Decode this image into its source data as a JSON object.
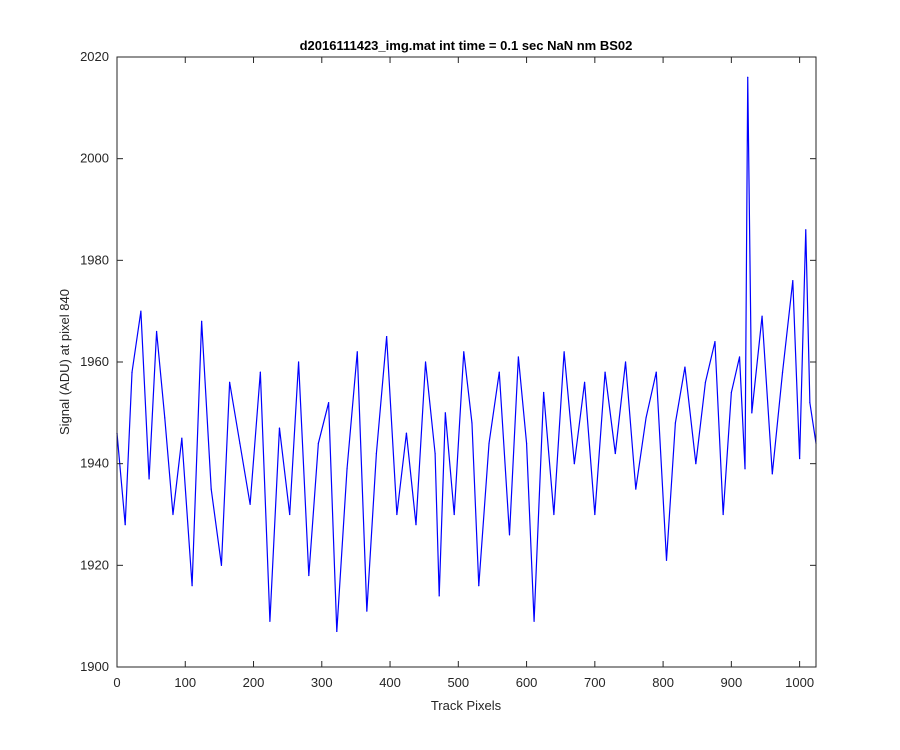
{
  "chart_data": {
    "type": "line",
    "title": "d2016111423_img.mat int time = 0.1 sec  NaN nm BS02",
    "xlabel": "Track Pixels",
    "ylabel": "Signal (ADU) at pixel 840",
    "xlim": [
      0,
      1024
    ],
    "ylim": [
      1900,
      2020
    ],
    "xticks": [
      0,
      100,
      200,
      300,
      400,
      500,
      600,
      700,
      800,
      900,
      1000
    ],
    "yticks": [
      1900,
      1920,
      1940,
      1960,
      1980,
      2000,
      2020
    ],
    "grid": false,
    "series": [
      {
        "color": "#0000ff",
        "x": [
          0,
          12,
          22,
          35,
          47,
          58,
          70,
          82,
          95,
          110,
          124,
          138,
          153,
          165,
          180,
          195,
          210,
          224,
          238,
          253,
          266,
          281,
          295,
          310,
          322,
          337,
          352,
          366,
          380,
          395,
          410,
          424,
          438,
          452,
          466,
          472,
          481,
          494,
          508,
          520,
          530,
          545,
          560,
          575,
          588,
          600,
          611,
          625,
          640,
          655,
          670,
          685,
          700,
          715,
          730,
          745,
          760,
          775,
          790,
          805,
          818,
          832,
          848,
          862,
          876,
          888,
          900,
          912,
          920,
          924,
          930,
          945,
          960,
          975,
          990,
          1000,
          1009,
          1015,
          1024
        ],
        "y": [
          1946,
          1928,
          1958,
          1970,
          1937,
          1966,
          1949,
          1930,
          1945,
          1916,
          1968,
          1935,
          1920,
          1956,
          1944,
          1932,
          1958,
          1909,
          1947,
          1930,
          1960,
          1918,
          1944,
          1952,
          1907,
          1939,
          1962,
          1911,
          1942,
          1965,
          1930,
          1946,
          1928,
          1960,
          1942,
          1914,
          1950,
          1930,
          1962,
          1948,
          1916,
          1944,
          1958,
          1926,
          1961,
          1944,
          1909,
          1954,
          1930,
          1962,
          1940,
          1956,
          1930,
          1958,
          1942,
          1960,
          1935,
          1949,
          1958,
          1921,
          1948,
          1959,
          1940,
          1956,
          1964,
          1930,
          1954,
          1961,
          1939,
          2016,
          1950,
          1969,
          1938,
          1958,
          1976,
          1941,
          1986,
          1952,
          1944
        ]
      }
    ]
  }
}
